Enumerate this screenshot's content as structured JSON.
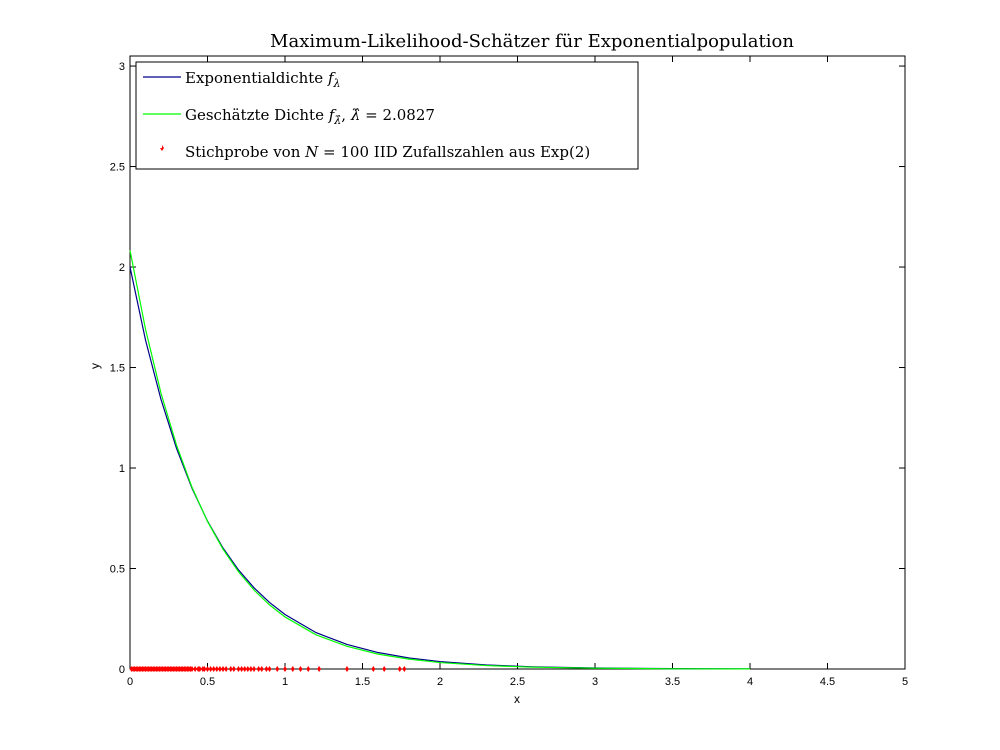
{
  "chart_data": {
    "type": "line",
    "title": "Maximum-Likelihood-Schätzer für Exponentialpopulation",
    "xlabel": "x",
    "ylabel": "y",
    "xlim": [
      0,
      5
    ],
    "ylim": [
      0,
      3.05
    ],
    "xticks": [
      "0",
      "0.5",
      "1",
      "1.5",
      "2",
      "2.5",
      "3",
      "3.5",
      "4",
      "4.5",
      "5"
    ],
    "yticks": [
      "0",
      "0.5",
      "1",
      "1.5",
      "2",
      "2.5",
      "3"
    ],
    "grid": false,
    "legend_position": "top-left",
    "legend": {
      "entry1_prefix": "Exponentialdichte ",
      "entry1_math": "f",
      "entry1_sub": "λ",
      "entry2_prefix": "Geschätzte Dichte ",
      "entry2_math": "f",
      "entry2_sub": "λ̂",
      "entry2_lambda": "λ̂",
      "entry2_eq": " = 2.0827",
      "entry3_prefix": "Stichprobe von ",
      "entry3_N": "N",
      "entry3_suffix": " = 100 IID Zufallszahlen aus Exp(2)"
    },
    "series": [
      {
        "name": "Exponentialdichte",
        "kind": "line",
        "color": "#00008b",
        "x": [
          0,
          0.1,
          0.2,
          0.3,
          0.4,
          0.5,
          0.6,
          0.7,
          0.8,
          0.9,
          1.0,
          1.2,
          1.4,
          1.6,
          1.8,
          2.0,
          2.3,
          2.6,
          3.0,
          3.5,
          4.0
        ],
        "y": [
          2.0,
          1.637,
          1.341,
          1.098,
          0.899,
          0.736,
          0.602,
          0.493,
          0.404,
          0.331,
          0.271,
          0.181,
          0.122,
          0.082,
          0.055,
          0.037,
          0.02,
          0.011,
          0.005,
          0.002,
          0.001
        ]
      },
      {
        "name": "Geschätzte Dichte",
        "kind": "line",
        "color": "#00ff00",
        "x": [
          0,
          0.1,
          0.2,
          0.3,
          0.4,
          0.5,
          0.6,
          0.7,
          0.8,
          0.9,
          1.0,
          1.2,
          1.4,
          1.6,
          1.8,
          2.0,
          2.3,
          2.6,
          3.0,
          3.5,
          4.0
        ],
        "y": [
          2.083,
          1.691,
          1.372,
          1.114,
          0.904,
          0.734,
          0.596,
          0.484,
          0.393,
          0.319,
          0.259,
          0.17,
          0.113,
          0.074,
          0.049,
          0.032,
          0.017,
          0.009,
          0.004,
          0.001,
          0.0005
        ]
      },
      {
        "name": "Stichprobe",
        "kind": "scatter",
        "color": "#ff0000",
        "x": [
          0.01,
          0.02,
          0.03,
          0.04,
          0.05,
          0.06,
          0.07,
          0.08,
          0.09,
          0.1,
          0.11,
          0.12,
          0.13,
          0.14,
          0.15,
          0.16,
          0.17,
          0.18,
          0.19,
          0.2,
          0.21,
          0.22,
          0.23,
          0.24,
          0.25,
          0.26,
          0.27,
          0.28,
          0.29,
          0.3,
          0.31,
          0.32,
          0.33,
          0.34,
          0.35,
          0.36,
          0.37,
          0.38,
          0.39,
          0.4,
          0.42,
          0.44,
          0.45,
          0.47,
          0.48,
          0.5,
          0.52,
          0.54,
          0.56,
          0.58,
          0.6,
          0.62,
          0.65,
          0.67,
          0.7,
          0.72,
          0.74,
          0.76,
          0.78,
          0.8,
          0.83,
          0.85,
          0.88,
          0.9,
          0.95,
          1.0,
          1.05,
          1.1,
          1.15,
          1.22,
          1.4,
          1.57,
          1.64,
          1.74,
          1.77
        ],
        "y": [
          0,
          0,
          0,
          0,
          0,
          0,
          0,
          0,
          0,
          0,
          0,
          0,
          0,
          0,
          0,
          0,
          0,
          0,
          0,
          0,
          0,
          0,
          0,
          0,
          0,
          0,
          0,
          0,
          0,
          0,
          0,
          0,
          0,
          0,
          0,
          0,
          0,
          0,
          0,
          0,
          0,
          0,
          0,
          0,
          0,
          0,
          0,
          0,
          0,
          0,
          0,
          0,
          0,
          0,
          0,
          0,
          0,
          0,
          0,
          0,
          0,
          0,
          0,
          0,
          0,
          0,
          0,
          0,
          0,
          0,
          0,
          0,
          0,
          0,
          0
        ]
      }
    ]
  }
}
